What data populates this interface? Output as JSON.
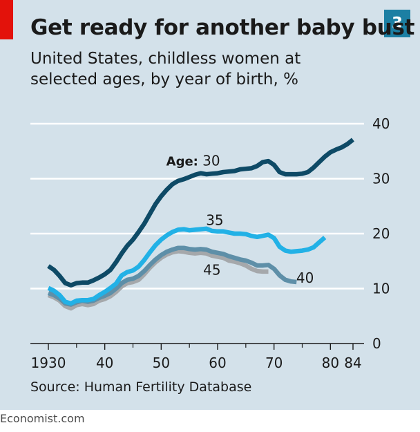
{
  "header": {
    "number": "3",
    "title": "Get ready for another baby bust",
    "subtitle": "United States, childless women at selected ages, by year of birth, %"
  },
  "source": "Source: Human Fertility Database",
  "brand": "Economist.com",
  "colors": {
    "background": "#d3e1ea",
    "age30": "#0e4a66",
    "age35": "#22b1e6",
    "age40": "#5e8fa8",
    "age45": "#a5a8ab",
    "flag": "#e3120b",
    "badge": "#1c7fa3"
  },
  "chart_data": {
    "type": "line",
    "title": "Get ready for another baby bust",
    "subtitle": "United States, childless women at selected ages, by year of birth, %",
    "xlim": [
      1930,
      1984
    ],
    "ylim": [
      0,
      40
    ],
    "yticks": [
      0,
      10,
      20,
      30,
      40
    ],
    "xticks": [
      {
        "value": 1930,
        "label": "1930"
      },
      {
        "value": 1940,
        "label": "40"
      },
      {
        "value": 1950,
        "label": "50"
      },
      {
        "value": 1960,
        "label": "60"
      },
      {
        "value": 1970,
        "label": "70"
      },
      {
        "value": 1980,
        "label": "80"
      },
      {
        "value": 1984,
        "label": "84"
      }
    ],
    "grid": true,
    "y_axis_side": "right",
    "series": [
      {
        "key": "age45",
        "name": "45",
        "label_at": [
          1959,
          12.5
        ],
        "x": [
          1930,
          1931,
          1932,
          1933,
          1934,
          1935,
          1936,
          1937,
          1938,
          1939,
          1940,
          1941,
          1942,
          1943,
          1944,
          1945,
          1946,
          1947,
          1948,
          1949,
          1950,
          1951,
          1952,
          1953,
          1954,
          1955,
          1956,
          1957,
          1958,
          1959,
          1960,
          1961,
          1962,
          1963,
          1964,
          1965,
          1966,
          1967,
          1968,
          1969
        ],
        "y": [
          8.8,
          8.4,
          7.8,
          6.8,
          6.4,
          7.0,
          7.2,
          7.0,
          7.2,
          7.8,
          8.1,
          8.6,
          9.4,
          10.4,
          11.0,
          11.2,
          11.6,
          12.6,
          13.8,
          14.8,
          15.6,
          16.2,
          16.6,
          16.8,
          16.7,
          16.5,
          16.4,
          16.5,
          16.4,
          16.0,
          15.8,
          15.6,
          15.1,
          14.9,
          14.6,
          14.2,
          13.6,
          13.2,
          13.1,
          13.1
        ]
      },
      {
        "key": "age40",
        "name": "40",
        "label_at": [
          1975.5,
          11.1
        ],
        "x": [
          1930,
          1931,
          1932,
          1933,
          1934,
          1935,
          1936,
          1937,
          1938,
          1939,
          1940,
          1941,
          1942,
          1943,
          1944,
          1945,
          1946,
          1947,
          1948,
          1949,
          1950,
          1951,
          1952,
          1953,
          1954,
          1955,
          1956,
          1957,
          1958,
          1959,
          1960,
          1961,
          1962,
          1963,
          1964,
          1965,
          1966,
          1967,
          1968,
          1969,
          1970,
          1971,
          1972,
          1973,
          1974
        ],
        "y": [
          9.2,
          8.8,
          8.2,
          7.3,
          7.1,
          7.5,
          7.8,
          7.6,
          7.8,
          8.3,
          8.7,
          9.2,
          10.0,
          11.0,
          11.6,
          11.8,
          12.3,
          13.2,
          14.3,
          15.3,
          16.1,
          16.7,
          17.1,
          17.4,
          17.4,
          17.2,
          17.1,
          17.2,
          17.1,
          16.7,
          16.5,
          16.3,
          15.9,
          15.6,
          15.3,
          15.1,
          14.7,
          14.2,
          14.2,
          14.3,
          13.6,
          12.4,
          11.6,
          11.3,
          11.2
        ]
      },
      {
        "key": "age35",
        "name": "35",
        "label_at": [
          1959.5,
          21.6
        ],
        "x": [
          1930,
          1931,
          1932,
          1933,
          1934,
          1935,
          1936,
          1937,
          1938,
          1939,
          1940,
          1941,
          1942,
          1943,
          1944,
          1945,
          1946,
          1947,
          1948,
          1949,
          1950,
          1951,
          1952,
          1953,
          1954,
          1955,
          1956,
          1957,
          1958,
          1959,
          1960,
          1961,
          1962,
          1963,
          1964,
          1965,
          1966,
          1967,
          1968,
          1969,
          1970,
          1971,
          1972,
          1973,
          1974,
          1975,
          1976,
          1977,
          1978,
          1979
        ],
        "y": [
          10.1,
          9.6,
          8.8,
          7.6,
          7.3,
          7.8,
          7.9,
          7.9,
          8.1,
          8.8,
          9.4,
          10.1,
          10.9,
          12.4,
          13.0,
          13.3,
          14.0,
          15.2,
          16.6,
          17.9,
          18.9,
          19.7,
          20.3,
          20.7,
          20.8,
          20.6,
          20.7,
          20.8,
          20.9,
          20.5,
          20.4,
          20.4,
          20.2,
          20.0,
          20.0,
          19.9,
          19.6,
          19.4,
          19.6,
          19.8,
          19.2,
          17.6,
          16.9,
          16.7,
          16.8,
          16.9,
          17.1,
          17.5,
          18.4,
          19.3
        ]
      },
      {
        "key": "age30",
        "name": "30",
        "label_at": [
          1958,
          32.4
        ],
        "prefix": "Age:",
        "x": [
          1930,
          1931,
          1932,
          1933,
          1934,
          1935,
          1936,
          1937,
          1938,
          1939,
          1940,
          1941,
          1942,
          1943,
          1944,
          1945,
          1946,
          1947,
          1948,
          1949,
          1950,
          1951,
          1952,
          1953,
          1954,
          1955,
          1956,
          1957,
          1958,
          1959,
          1960,
          1961,
          1962,
          1963,
          1964,
          1965,
          1966,
          1967,
          1968,
          1969,
          1970,
          1971,
          1972,
          1973,
          1974,
          1975,
          1976,
          1977,
          1978,
          1979,
          1980,
          1981,
          1982,
          1983,
          1984
        ],
        "y": [
          14.1,
          13.4,
          12.3,
          11.0,
          10.6,
          11.0,
          11.1,
          11.1,
          11.5,
          12.0,
          12.6,
          13.4,
          14.8,
          16.4,
          17.8,
          18.9,
          20.3,
          21.8,
          23.6,
          25.4,
          26.8,
          28.0,
          29.0,
          29.6,
          29.9,
          30.3,
          30.7,
          31.0,
          30.8,
          30.9,
          31.0,
          31.2,
          31.3,
          31.4,
          31.7,
          31.8,
          31.9,
          32.3,
          33.0,
          33.2,
          32.5,
          31.2,
          30.8,
          30.8,
          30.8,
          30.9,
          31.2,
          32.0,
          33.0,
          34.0,
          34.8,
          35.3,
          35.7,
          36.3,
          37.1
        ]
      }
    ]
  }
}
